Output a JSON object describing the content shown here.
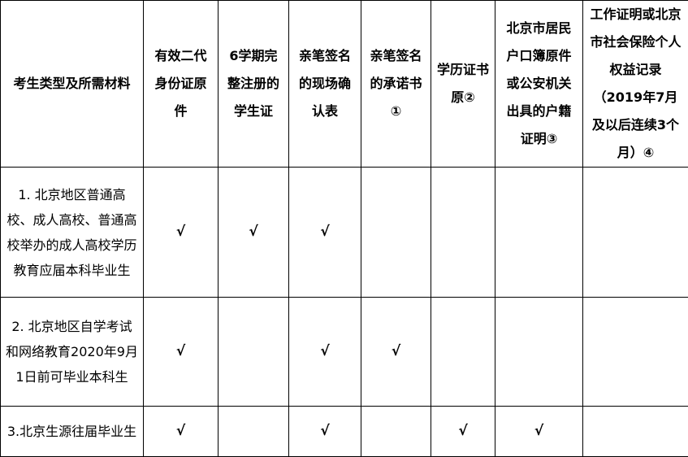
{
  "headers": [
    "考生类型及所需材料",
    "有效二代身份证原件",
    "6学期完整注册的学生证",
    "亲笔签名的现场确认表",
    "亲笔签名的承诺书①",
    "学历证书原②",
    "北京市居民户口簿原件或公安机关出具的户籍证明③",
    "工作证明或北京市社会保险个人权益记录（2019年7月及以后连续3个月）④"
  ],
  "check_mark": "√",
  "rows": [
    {
      "type": "1. 北京地区普通高校、成人高校、普通高校举办的成人高校学历教育应届本科毕业生",
      "cells": [
        "√",
        "√",
        "√",
        "",
        "",
        "",
        ""
      ]
    },
    {
      "type": "2. 北京地区自学考试和网络教育2020年9月1日前可毕业本科生",
      "cells": [
        "√",
        "",
        "√",
        "√",
        "",
        "",
        ""
      ]
    },
    {
      "type": "3.北京生源往届毕业生",
      "cells": [
        "√",
        "",
        "√",
        "",
        "√",
        "√",
        ""
      ]
    }
  ]
}
